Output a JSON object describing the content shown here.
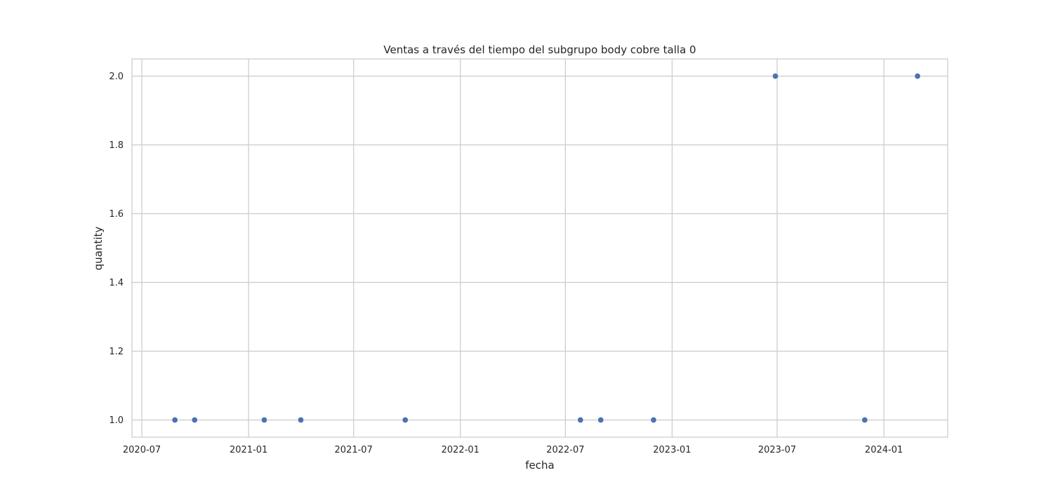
{
  "chart_data": {
    "type": "scatter",
    "title": "Ventas a través del tiempo del subgrupo body cobre talla 0",
    "xlabel": "fecha",
    "ylabel": "quantity",
    "x_type": "date",
    "xlim": [
      "2020-06-14",
      "2024-04-20"
    ],
    "ylim": [
      0.95,
      2.05
    ],
    "x_ticks": [
      "2020-07-01",
      "2021-01-01",
      "2021-07-01",
      "2022-01-01",
      "2022-07-01",
      "2023-01-01",
      "2023-07-01",
      "2024-01-01"
    ],
    "x_tick_labels": [
      "2020-07",
      "2021-01",
      "2021-07",
      "2022-01",
      "2022-07",
      "2023-01",
      "2023-07",
      "2024-01"
    ],
    "y_ticks": [
      1.0,
      1.2,
      1.4,
      1.6,
      1.8,
      2.0
    ],
    "y_tick_labels": [
      "1.0",
      "1.2",
      "1.4",
      "1.6",
      "1.8",
      "2.0"
    ],
    "grid": true,
    "point_color": "#4c72b0",
    "grid_color": "#cccccc",
    "series": [
      {
        "points": [
          {
            "x": "2020-08-27",
            "y": 1
          },
          {
            "x": "2020-09-30",
            "y": 1
          },
          {
            "x": "2021-01-28",
            "y": 1
          },
          {
            "x": "2021-04-01",
            "y": 1
          },
          {
            "x": "2021-09-28",
            "y": 1
          },
          {
            "x": "2022-07-27",
            "y": 1
          },
          {
            "x": "2022-08-31",
            "y": 1
          },
          {
            "x": "2022-11-30",
            "y": 1
          },
          {
            "x": "2023-06-28",
            "y": 2
          },
          {
            "x": "2023-11-29",
            "y": 1
          },
          {
            "x": "2024-02-28",
            "y": 2
          }
        ]
      }
    ]
  }
}
